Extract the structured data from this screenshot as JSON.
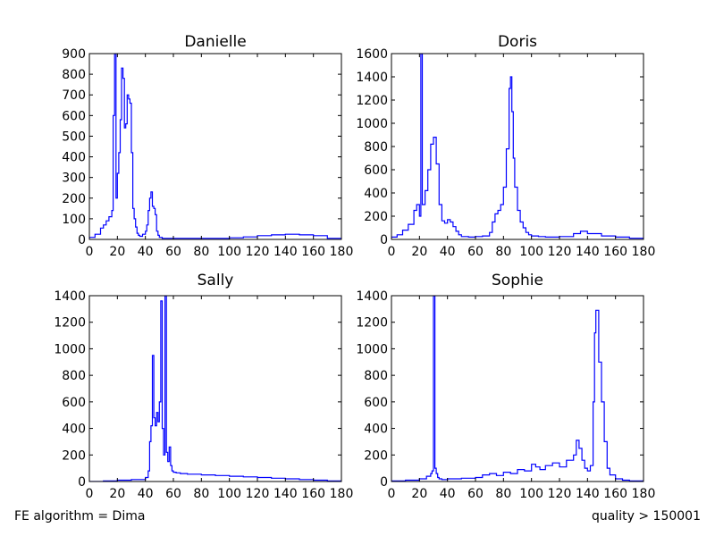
{
  "footer": {
    "left": "FE algorithm = Dima",
    "right": "quality > 150001"
  },
  "line_color": "#0000ff",
  "chart_data": [
    {
      "type": "line",
      "subtype": "step-histogram",
      "title": "Danielle",
      "xlim": [
        0,
        180
      ],
      "ylim": [
        0,
        900
      ],
      "xticks": [
        0,
        20,
        40,
        60,
        80,
        100,
        120,
        140,
        160,
        180
      ],
      "yticks": [
        0,
        100,
        200,
        300,
        400,
        500,
        600,
        700,
        800,
        900
      ],
      "series": [
        {
          "x": [
            0,
            4,
            8,
            10,
            12,
            14,
            16,
            17,
            18,
            19,
            20,
            21,
            22,
            23,
            24,
            25,
            26,
            27,
            28,
            29,
            30,
            31,
            32,
            33,
            34,
            35,
            36,
            38,
            40,
            41,
            42,
            43,
            44,
            45,
            46,
            47,
            48,
            49,
            50,
            52,
            55,
            60,
            80,
            100,
            110,
            120,
            130,
            140,
            150,
            160,
            170,
            180
          ],
          "y": [
            10,
            25,
            55,
            70,
            90,
            110,
            140,
            600,
            900,
            200,
            320,
            420,
            580,
            830,
            780,
            540,
            560,
            700,
            680,
            660,
            420,
            150,
            100,
            60,
            30,
            20,
            15,
            25,
            40,
            70,
            140,
            200,
            230,
            160,
            150,
            120,
            40,
            20,
            10,
            5,
            5,
            5,
            5,
            8,
            12,
            18,
            22,
            25,
            22,
            18,
            5,
            2
          ]
        }
      ]
    },
    {
      "type": "line",
      "subtype": "step-histogram",
      "title": "Doris",
      "xlim": [
        0,
        180
      ],
      "ylim": [
        0,
        1600
      ],
      "xticks": [
        0,
        20,
        40,
        60,
        80,
        100,
        120,
        140,
        160,
        180
      ],
      "yticks": [
        0,
        200,
        400,
        600,
        800,
        1000,
        1200,
        1400,
        1600
      ],
      "series": [
        {
          "x": [
            0,
            4,
            8,
            12,
            16,
            18,
            20,
            21,
            22,
            24,
            26,
            28,
            30,
            32,
            34,
            36,
            38,
            40,
            42,
            44,
            46,
            48,
            50,
            55,
            60,
            65,
            70,
            72,
            74,
            76,
            78,
            80,
            82,
            84,
            85,
            86,
            87,
            88,
            90,
            92,
            94,
            96,
            98,
            100,
            105,
            110,
            120,
            130,
            135,
            140,
            150,
            160,
            170,
            180
          ],
          "y": [
            20,
            40,
            80,
            130,
            250,
            300,
            200,
            1600,
            300,
            420,
            600,
            820,
            880,
            650,
            300,
            160,
            140,
            170,
            150,
            110,
            70,
            40,
            25,
            20,
            25,
            30,
            60,
            150,
            220,
            250,
            300,
            450,
            780,
            1300,
            1400,
            1100,
            700,
            450,
            250,
            150,
            100,
            60,
            40,
            30,
            25,
            20,
            25,
            50,
            70,
            50,
            30,
            20,
            10,
            5
          ]
        }
      ]
    },
    {
      "type": "line",
      "subtype": "step-histogram",
      "title": "Sally",
      "xlim": [
        0,
        180
      ],
      "ylim": [
        0,
        1400
      ],
      "xticks": [
        0,
        20,
        40,
        60,
        80,
        100,
        120,
        140,
        160,
        180
      ],
      "yticks": [
        0,
        200,
        400,
        600,
        800,
        1000,
        1200,
        1400
      ],
      "series": [
        {
          "x": [
            0,
            10,
            20,
            30,
            40,
            42,
            43,
            44,
            45,
            46,
            47,
            48,
            49,
            50,
            51,
            52,
            53,
            54,
            55,
            56,
            57,
            58,
            59,
            60,
            62,
            65,
            70,
            80,
            90,
            100,
            110,
            120,
            130,
            140,
            150,
            160,
            170,
            180
          ],
          "y": [
            0,
            5,
            10,
            15,
            30,
            80,
            300,
            420,
            950,
            480,
            420,
            520,
            450,
            600,
            1360,
            400,
            200,
            1400,
            220,
            150,
            260,
            120,
            80,
            70,
            65,
            60,
            55,
            50,
            45,
            40,
            35,
            30,
            25,
            20,
            15,
            10,
            5,
            0
          ]
        }
      ]
    },
    {
      "type": "line",
      "subtype": "step-histogram",
      "title": "Sophie",
      "xlim": [
        0,
        180
      ],
      "ylim": [
        0,
        1400
      ],
      "xticks": [
        0,
        20,
        40,
        60,
        80,
        100,
        120,
        140,
        160,
        180
      ],
      "yticks": [
        0,
        200,
        400,
        600,
        800,
        1000,
        1200,
        1400
      ],
      "series": [
        {
          "x": [
            0,
            10,
            20,
            25,
            28,
            29,
            30,
            31,
            32,
            33,
            34,
            36,
            40,
            50,
            60,
            65,
            70,
            75,
            80,
            85,
            90,
            95,
            100,
            103,
            106,
            110,
            115,
            120,
            125,
            130,
            132,
            134,
            136,
            138,
            140,
            142,
            144,
            145,
            146,
            148,
            150,
            152,
            154,
            156,
            160,
            165,
            170,
            180
          ],
          "y": [
            5,
            10,
            20,
            40,
            60,
            80,
            1400,
            100,
            60,
            30,
            20,
            15,
            20,
            25,
            30,
            50,
            60,
            45,
            70,
            60,
            90,
            80,
            130,
            110,
            90,
            120,
            140,
            110,
            160,
            200,
            310,
            250,
            160,
            100,
            80,
            120,
            600,
            1120,
            1290,
            900,
            600,
            300,
            100,
            50,
            20,
            10,
            5,
            0
          ]
        }
      ]
    }
  ]
}
